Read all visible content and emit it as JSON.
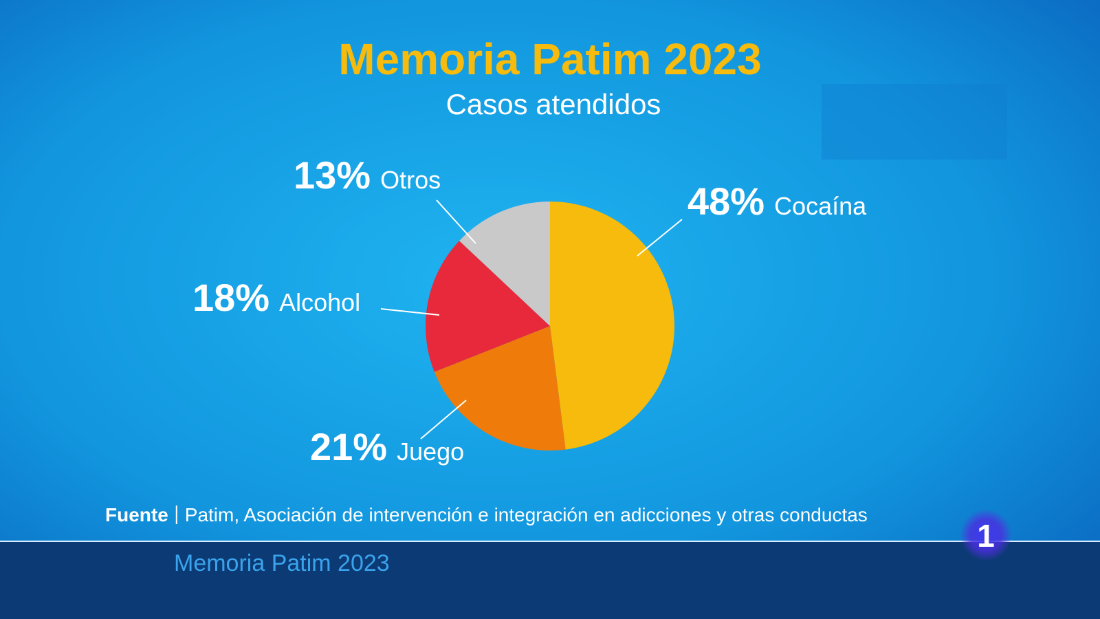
{
  "chart_data": {
    "type": "pie",
    "title": "Memoria Patim 2023",
    "subtitle": "Casos atendidos",
    "categories": [
      "Cocaína",
      "Juego",
      "Alcohol",
      "Otros"
    ],
    "values": [
      48,
      21,
      18,
      13
    ],
    "value_labels": [
      "48%",
      "21%",
      "18%",
      "13%"
    ],
    "colors": [
      "#f6bb0c",
      "#ef7b0b",
      "#e8293b",
      "#c9c9c9"
    ]
  },
  "source": {
    "label": "Fuente",
    "text": "Patim, Asociación de intervención e integración en adicciones y otras conductas"
  },
  "banner": "Memoria Patim 2023",
  "channel_logo": "1"
}
